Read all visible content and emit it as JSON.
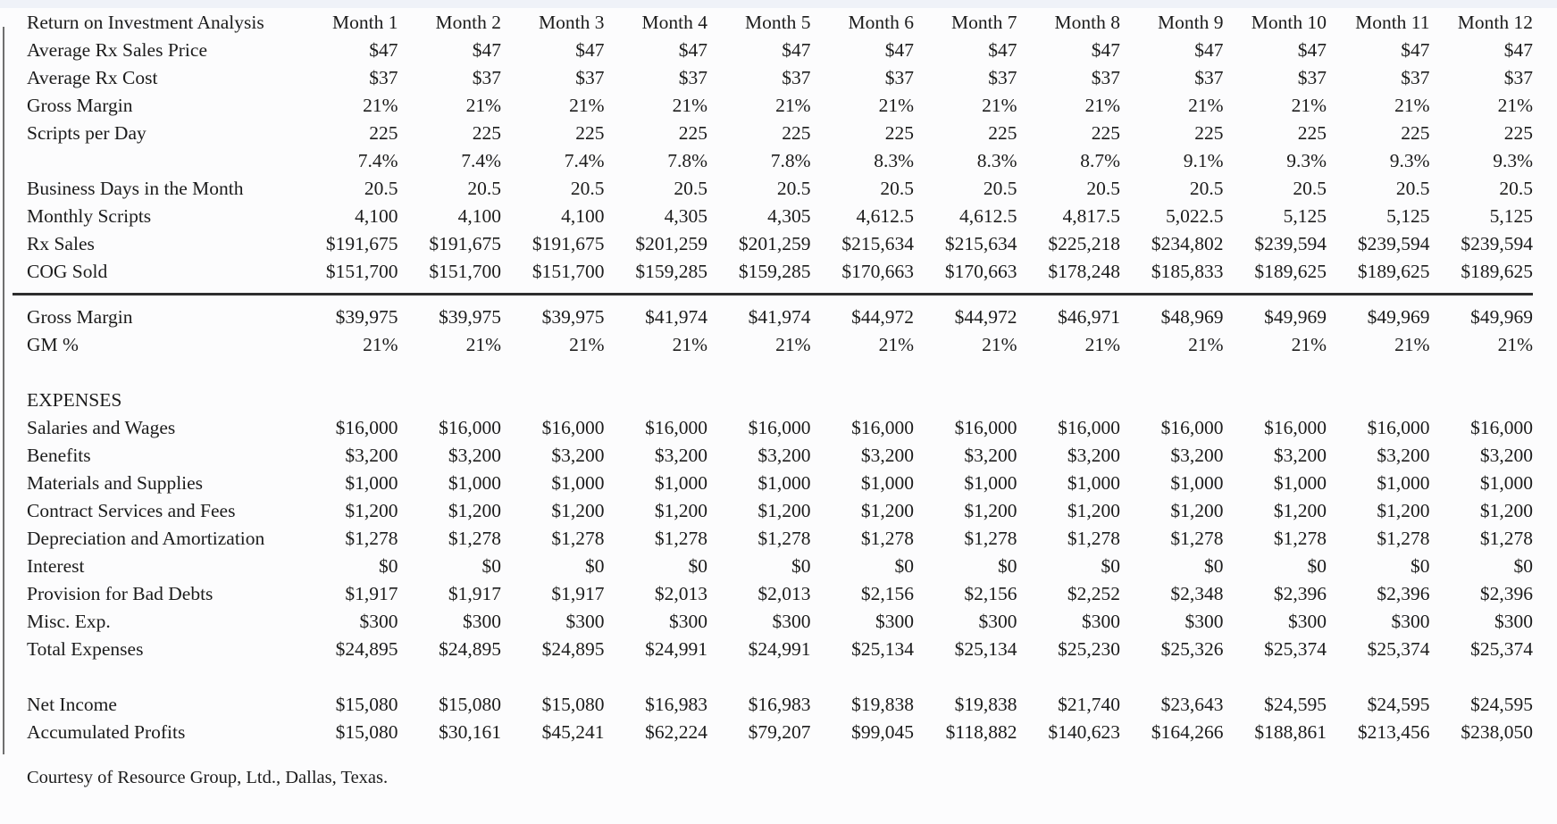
{
  "table": {
    "title": "Return on Investment Analysis",
    "columns": [
      "Month 1",
      "Month 2",
      "Month 3",
      "Month 4",
      "Month 5",
      "Month 6",
      "Month 7",
      "Month 8",
      "Month 9",
      "Month 10",
      "Month 11",
      "Month 12"
    ],
    "rows": [
      {
        "type": "data",
        "label": "Average Rx Sales Price",
        "values": [
          "$47",
          "$47",
          "$47",
          "$47",
          "$47",
          "$47",
          "$47",
          "$47",
          "$47",
          "$47",
          "$47",
          "$47"
        ]
      },
      {
        "type": "data",
        "label": "Average Rx Cost",
        "values": [
          "$37",
          "$37",
          "$37",
          "$37",
          "$37",
          "$37",
          "$37",
          "$37",
          "$37",
          "$37",
          "$37",
          "$37"
        ]
      },
      {
        "type": "data",
        "label": "Gross Margin",
        "values": [
          "21%",
          "21%",
          "21%",
          "21%",
          "21%",
          "21%",
          "21%",
          "21%",
          "21%",
          "21%",
          "21%",
          "21%"
        ]
      },
      {
        "type": "data",
        "label": "Scripts per Day",
        "values": [
          "225",
          "225",
          "225",
          "225",
          "225",
          "225",
          "225",
          "225",
          "225",
          "225",
          "225",
          "225"
        ]
      },
      {
        "type": "data",
        "label": "",
        "values": [
          "7.4%",
          "7.4%",
          "7.4%",
          "7.8%",
          "7.8%",
          "8.3%",
          "8.3%",
          "8.7%",
          "9.1%",
          "9.3%",
          "9.3%",
          "9.3%"
        ]
      },
      {
        "type": "data",
        "label": "Business Days in the Month",
        "values": [
          "20.5",
          "20.5",
          "20.5",
          "20.5",
          "20.5",
          "20.5",
          "20.5",
          "20.5",
          "20.5",
          "20.5",
          "20.5",
          "20.5"
        ]
      },
      {
        "type": "data",
        "label": "Monthly Scripts",
        "values": [
          "4,100",
          "4,100",
          "4,100",
          "4,305",
          "4,305",
          "4,612.5",
          "4,612.5",
          "4,817.5",
          "5,022.5",
          "5,125",
          "5,125",
          "5,125"
        ]
      },
      {
        "type": "data",
        "label": "Rx Sales",
        "values": [
          "$191,675",
          "$191,675",
          "$191,675",
          "$201,259",
          "$201,259",
          "$215,634",
          "$215,634",
          "$225,218",
          "$234,802",
          "$239,594",
          "$239,594",
          "$239,594"
        ]
      },
      {
        "type": "data",
        "label": "COG Sold",
        "rule_below": true,
        "values": [
          "$151,700",
          "$151,700",
          "$151,700",
          "$159,285",
          "$159,285",
          "$170,663",
          "$170,663",
          "$178,248",
          "$185,833",
          "$189,625",
          "$189,625",
          "$189,625"
        ]
      },
      {
        "type": "data",
        "label": "Gross Margin",
        "values": [
          "$39,975",
          "$39,975",
          "$39,975",
          "$41,974",
          "$41,974",
          "$44,972",
          "$44,972",
          "$46,971",
          "$48,969",
          "$49,969",
          "$49,969",
          "$49,969"
        ]
      },
      {
        "type": "data",
        "label": "GM %",
        "values": [
          "21%",
          "21%",
          "21%",
          "21%",
          "21%",
          "21%",
          "21%",
          "21%",
          "21%",
          "21%",
          "21%",
          "21%"
        ]
      },
      {
        "type": "spacer"
      },
      {
        "type": "section",
        "label": "EXPENSES"
      },
      {
        "type": "data",
        "label": "Salaries and Wages",
        "values": [
          "$16,000",
          "$16,000",
          "$16,000",
          "$16,000",
          "$16,000",
          "$16,000",
          "$16,000",
          "$16,000",
          "$16,000",
          "$16,000",
          "$16,000",
          "$16,000"
        ]
      },
      {
        "type": "data",
        "label": "Benefits",
        "values": [
          "$3,200",
          "$3,200",
          "$3,200",
          "$3,200",
          "$3,200",
          "$3,200",
          "$3,200",
          "$3,200",
          "$3,200",
          "$3,200",
          "$3,200",
          "$3,200"
        ]
      },
      {
        "type": "data",
        "label": "Materials and Supplies",
        "values": [
          "$1,000",
          "$1,000",
          "$1,000",
          "$1,000",
          "$1,000",
          "$1,000",
          "$1,000",
          "$1,000",
          "$1,000",
          "$1,000",
          "$1,000",
          "$1,000"
        ]
      },
      {
        "type": "data",
        "label": "Contract Services and Fees",
        "values": [
          "$1,200",
          "$1,200",
          "$1,200",
          "$1,200",
          "$1,200",
          "$1,200",
          "$1,200",
          "$1,200",
          "$1,200",
          "$1,200",
          "$1,200",
          "$1,200"
        ]
      },
      {
        "type": "data",
        "label": "Depreciation and Amortization",
        "values": [
          "$1,278",
          "$1,278",
          "$1,278",
          "$1,278",
          "$1,278",
          "$1,278",
          "$1,278",
          "$1,278",
          "$1,278",
          "$1,278",
          "$1,278",
          "$1,278"
        ]
      },
      {
        "type": "data",
        "label": "Interest",
        "values": [
          "$0",
          "$0",
          "$0",
          "$0",
          "$0",
          "$0",
          "$0",
          "$0",
          "$0",
          "$0",
          "$0",
          "$0"
        ]
      },
      {
        "type": "data",
        "label": "Provision for Bad Debts",
        "values": [
          "$1,917",
          "$1,917",
          "$1,917",
          "$2,013",
          "$2,013",
          "$2,156",
          "$2,156",
          "$2,252",
          "$2,348",
          "$2,396",
          "$2,396",
          "$2,396"
        ]
      },
      {
        "type": "data",
        "label": "Misc. Exp.",
        "values": [
          "$300",
          "$300",
          "$300",
          "$300",
          "$300",
          "$300",
          "$300",
          "$300",
          "$300",
          "$300",
          "$300",
          "$300"
        ]
      },
      {
        "type": "data",
        "label": "Total Expenses",
        "values": [
          "$24,895",
          "$24,895",
          "$24,895",
          "$24,991",
          "$24,991",
          "$25,134",
          "$25,134",
          "$25,230",
          "$25,326",
          "$25,374",
          "$25,374",
          "$25,374"
        ]
      },
      {
        "type": "spacer"
      },
      {
        "type": "data",
        "label": "Net Income",
        "values": [
          "$15,080",
          "$15,080",
          "$15,080",
          "$16,983",
          "$16,983",
          "$19,838",
          "$19,838",
          "$21,740",
          "$23,643",
          "$24,595",
          "$24,595",
          "$24,595"
        ]
      },
      {
        "type": "data",
        "label": "Accumulated Profits",
        "values": [
          "$15,080",
          "$30,161",
          "$45,241",
          "$62,224",
          "$79,207",
          "$99,045",
          "$118,882",
          "$140,623",
          "$164,266",
          "$188,861",
          "$213,456",
          "$238,050"
        ]
      }
    ],
    "footer": "Courtesy of Resource Group, Ltd., Dallas, Texas."
  }
}
